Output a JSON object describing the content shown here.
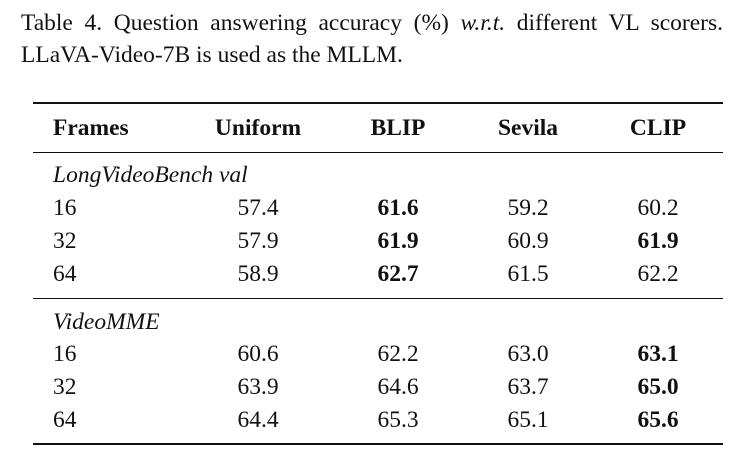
{
  "caption": {
    "prefix": "Table 4. Question answering accuracy (%) ",
    "wrt": "w.r.t.",
    "suffix": " different VL scorers. LLaVA-Video-7B is used as the MLLM."
  },
  "table": {
    "headers": [
      "Frames",
      "Uniform",
      "BLIP",
      "Sevila",
      "CLIP"
    ],
    "groups": [
      {
        "name": "LongVideoBench val",
        "rows": [
          {
            "cells": [
              "16",
              "57.4",
              "61.6",
              "59.2",
              "60.2"
            ],
            "bold": [
              false,
              false,
              true,
              false,
              false
            ]
          },
          {
            "cells": [
              "32",
              "57.9",
              "61.9",
              "60.9",
              "61.9"
            ],
            "bold": [
              false,
              false,
              true,
              false,
              true
            ]
          },
          {
            "cells": [
              "64",
              "58.9",
              "62.7",
              "61.5",
              "62.2"
            ],
            "bold": [
              false,
              false,
              true,
              false,
              false
            ]
          }
        ]
      },
      {
        "name": "VideoMME",
        "rows": [
          {
            "cells": [
              "16",
              "60.6",
              "62.2",
              "63.0",
              "63.1"
            ],
            "bold": [
              false,
              false,
              false,
              false,
              true
            ]
          },
          {
            "cells": [
              "32",
              "63.9",
              "64.6",
              "63.7",
              "65.0"
            ],
            "bold": [
              false,
              false,
              false,
              false,
              true
            ]
          },
          {
            "cells": [
              "64",
              "64.4",
              "65.3",
              "65.1",
              "65.6"
            ],
            "bold": [
              false,
              false,
              false,
              false,
              true
            ]
          }
        ]
      }
    ]
  }
}
